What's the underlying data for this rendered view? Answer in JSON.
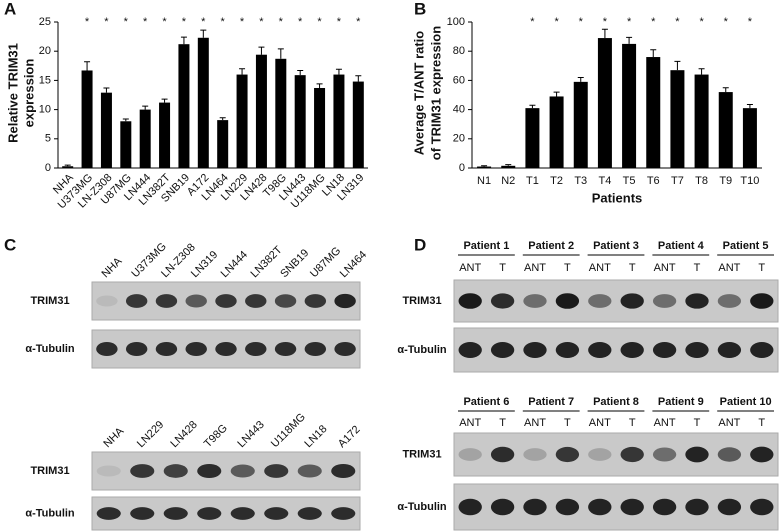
{
  "chart_data": [
    {
      "type": "bar",
      "panel": "A",
      "ylabel": [
        "Relative TRIM31",
        "expression"
      ],
      "categories": [
        "NHA",
        "U373MG",
        "LN-Z308",
        "U87MG",
        "LN444",
        "LN382T",
        "SNB19",
        "A172",
        "LN464",
        "LN229",
        "LN428",
        "T98G",
        "LN443",
        "U118MG",
        "LN18",
        "LN319"
      ],
      "values": [
        0.3,
        16.7,
        12.9,
        8.0,
        10.0,
        11.2,
        21.2,
        22.3,
        8.2,
        16.0,
        19.4,
        18.7,
        15.9,
        13.7,
        16.0,
        14.8
      ],
      "errors": [
        0.2,
        1.5,
        0.8,
        0.4,
        0.6,
        0.6,
        1.2,
        1.3,
        0.4,
        1.0,
        1.3,
        1.7,
        0.8,
        0.7,
        0.9,
        1.0
      ],
      "significance": [
        null,
        "*",
        "*",
        "*",
        "*",
        "*",
        "*",
        "*",
        "*",
        "*",
        "*",
        "*",
        "*",
        "*",
        "*",
        "*"
      ],
      "color": "#000000",
      "ylim": [
        0,
        25
      ],
      "yticks": [
        0,
        5,
        10,
        15,
        20,
        25
      ]
    },
    {
      "type": "bar",
      "panel": "B",
      "ylabel": [
        "Average T/ANT ratio",
        "of TRIM31 expression"
      ],
      "xlabel": "Patients",
      "categories": [
        "N1",
        "N2",
        "T1",
        "T2",
        "T3",
        "T4",
        "T5",
        "T6",
        "T7",
        "T8",
        "T9",
        "T10"
      ],
      "values": [
        1.0,
        1.5,
        41,
        49,
        59,
        89,
        85,
        76,
        67,
        64,
        52,
        41
      ],
      "errors": [
        0.5,
        0.8,
        2,
        3,
        3,
        6,
        4.5,
        5,
        6,
        4,
        3,
        2.5
      ],
      "significance": [
        null,
        null,
        "*",
        "*",
        "*",
        "*",
        "*",
        "*",
        "*",
        "*",
        "*",
        "*"
      ],
      "color": "#000000",
      "ylim": [
        0,
        100
      ],
      "yticks": [
        0,
        20,
        40,
        60,
        80,
        100
      ]
    }
  ],
  "blots": [
    {
      "panel": "C",
      "groups": [
        {
          "lanes": [
            "NHA",
            "U373MG",
            "LN-Z308",
            "LN319",
            "LN444",
            "LN382T",
            "SNB19",
            "U87MG",
            "LN464"
          ],
          "rows": [
            "TRIM31",
            "α-Tubulin"
          ]
        },
        {
          "lanes": [
            "NHA",
            "LN229",
            "LN428",
            "T98G",
            "LN443",
            "U118MG",
            "LN18",
            "A172"
          ],
          "rows": [
            "TRIM31",
            "α-Tubulin"
          ]
        }
      ]
    },
    {
      "panel": "D",
      "groups": [
        {
          "patients": [
            {
              "name": "Patient 1",
              "lanes": [
                "ANT",
                "T"
              ]
            },
            {
              "name": "Patient 2",
              "lanes": [
                "ANT",
                "T"
              ]
            },
            {
              "name": "Patient 3",
              "lanes": [
                "ANT",
                "T"
              ]
            },
            {
              "name": "Patient 4",
              "lanes": [
                "ANT",
                "T"
              ]
            },
            {
              "name": "Patient 5",
              "lanes": [
                "ANT",
                "T"
              ]
            }
          ],
          "rows": [
            "TRIM31",
            "α-Tubulin"
          ]
        },
        {
          "patients": [
            {
              "name": "Patient 6",
              "lanes": [
                "ANT",
                "T"
              ]
            },
            {
              "name": "Patient 7",
              "lanes": [
                "ANT",
                "T"
              ]
            },
            {
              "name": "Patient 8",
              "lanes": [
                "ANT",
                "T"
              ]
            },
            {
              "name": "Patient 9",
              "lanes": [
                "ANT",
                "T"
              ]
            },
            {
              "name": "Patient 10",
              "lanes": [
                "ANT",
                "T"
              ]
            }
          ],
          "rows": [
            "TRIM31",
            "α-Tubulin"
          ]
        }
      ]
    }
  ]
}
